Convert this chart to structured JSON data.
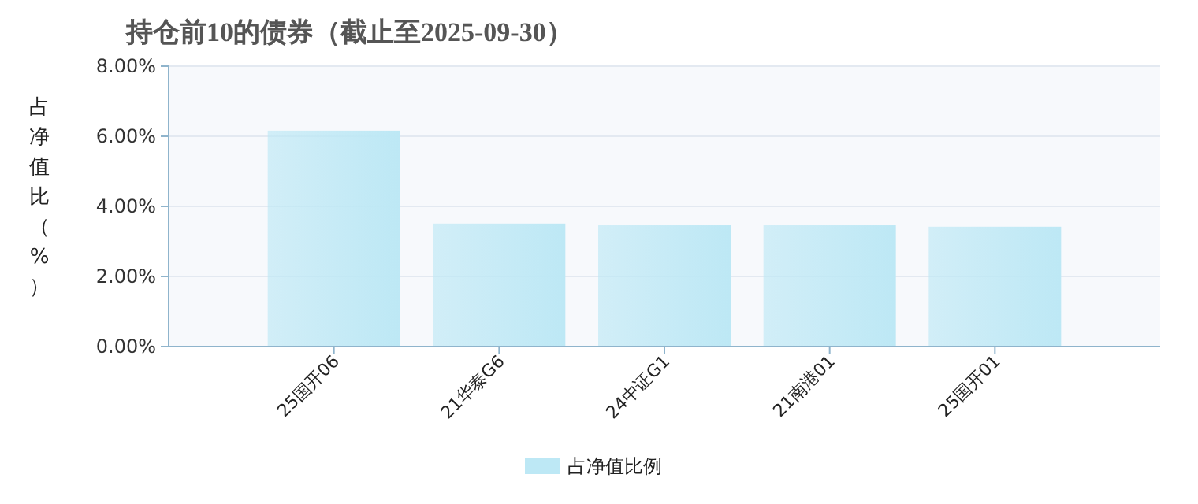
{
  "chart_data": {
    "type": "bar",
    "title": "持仓前10的债券（截止至2025-09-30）",
    "ylabel": "占净值比（%）",
    "categories": [
      "25国开06",
      "21华泰G6",
      "24中证G1",
      "21南港01",
      "25国开01"
    ],
    "series": [
      {
        "name": "占净值比例",
        "color": "#bde8f5",
        "values": [
          6.16,
          3.51,
          3.46,
          3.46,
          3.42
        ]
      }
    ],
    "ylim": [
      0,
      8
    ],
    "yticks": [
      {
        "value": 0,
        "label": "0.00%"
      },
      {
        "value": 2,
        "label": "2.00%"
      },
      {
        "value": 4,
        "label": "4.00%"
      },
      {
        "value": 6,
        "label": "6.00%"
      },
      {
        "value": 8,
        "label": "8.00%"
      }
    ],
    "grid": "y",
    "legend": "bottom"
  }
}
